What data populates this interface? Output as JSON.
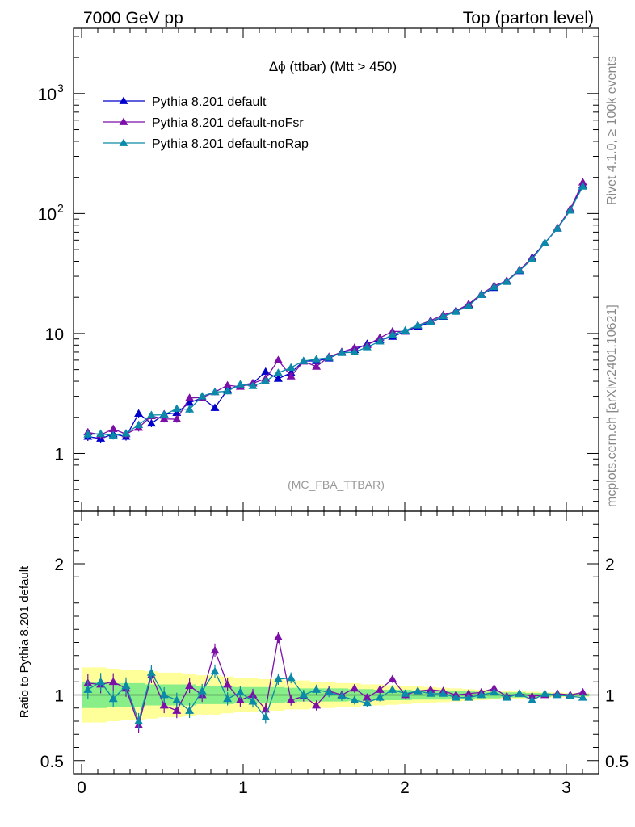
{
  "header": {
    "left": "7000 GeV pp",
    "right": "Top (parton level)"
  },
  "side_labels": {
    "rivet": "Rivet 4.1.0, ≥ 100k events",
    "mcplots": "mcplots.cern.ch [arXiv:2401.10621]"
  },
  "chart_data": [
    {
      "type": "line",
      "panel": "main",
      "title": "Δϕ (ttbar) (Mtt > 450)",
      "watermark": "(MC_FBA_TTBAR)",
      "xlabel": "",
      "ylabel": "",
      "yscale": "log",
      "xlim": [
        -0.05,
        3.2
      ],
      "ylim": [
        0.33,
        3500
      ],
      "x_ticks": [
        0,
        1,
        2,
        3
      ],
      "y_tick_labels": [
        "1",
        "10",
        "10",
        "10"
      ],
      "y_tick_exponents": [
        "",
        "",
        "2",
        "3"
      ],
      "legend_position": "top-left",
      "x": [
        0.039,
        0.118,
        0.196,
        0.275,
        0.353,
        0.432,
        0.511,
        0.589,
        0.668,
        0.746,
        0.825,
        0.903,
        0.982,
        1.06,
        1.139,
        1.217,
        1.296,
        1.374,
        1.453,
        1.531,
        1.61,
        1.689,
        1.767,
        1.846,
        1.924,
        2.003,
        2.081,
        2.16,
        2.238,
        2.317,
        2.395,
        2.474,
        2.553,
        2.631,
        2.71,
        2.788,
        2.867,
        2.945,
        3.024,
        3.102
      ],
      "series": [
        {
          "name": "Pythia 8.201 default",
          "color": "#0000cc",
          "values": [
            1.38,
            1.33,
            1.45,
            1.38,
            2.15,
            1.78,
            2.12,
            2.18,
            2.65,
            2.9,
            2.4,
            3.4,
            3.7,
            3.85,
            4.8,
            4.2,
            4.7,
            5.9,
            5.9,
            6.2,
            7.0,
            7.3,
            8.2,
            8.8,
            9.4,
            10.4,
            11.4,
            12.4,
            13.8,
            15.5,
            17.4,
            21.0,
            24.0,
            27.5,
            33.2,
            43.0,
            57.0,
            75.0,
            107.0,
            172.0
          ]
        },
        {
          "name": "Pythia 8.201 default-noFsr",
          "color": "#7b0fa8",
          "values": [
            1.5,
            1.43,
            1.6,
            1.45,
            1.64,
            2.05,
            1.94,
            1.93,
            2.9,
            2.92,
            3.25,
            3.7,
            3.6,
            3.85,
            4.2,
            6.0,
            4.4,
            5.85,
            5.3,
            6.4,
            7.0,
            7.6,
            8.0,
            9.2,
            10.4,
            10.4,
            11.7,
            12.8,
            14.3,
            15.4,
            17.6,
            21.3,
            25.0,
            27.4,
            34.0,
            42.5,
            56.5,
            76.0,
            109.0,
            182.0
          ]
        },
        {
          "name": "Pythia 8.201 default-noRap",
          "color": "#0a8aa8",
          "values": [
            1.44,
            1.46,
            1.41,
            1.47,
            1.73,
            2.09,
            2.1,
            2.36,
            2.33,
            3.0,
            3.25,
            3.3,
            3.77,
            3.65,
            4.0,
            4.7,
            5.2,
            5.9,
            6.1,
            6.3,
            6.9,
            7.0,
            7.7,
            8.6,
            9.8,
            10.6,
            11.7,
            12.5,
            13.9,
            15.2,
            17.0,
            21.0,
            24.4,
            27.0,
            33.5,
            41.5,
            57.0,
            75.0,
            106.0,
            168.0
          ]
        }
      ]
    },
    {
      "type": "line",
      "panel": "ratio",
      "ylabel": "Ratio to Pythia 8.201 default",
      "xlim": [
        -0.05,
        3.2
      ],
      "ylim": [
        0.4,
        2.4
      ],
      "x_ticks": [
        0,
        1,
        2,
        3
      ],
      "y_tick_labels": [
        "0.5",
        "1",
        "2"
      ],
      "band_green_halfwidth": [
        0.1,
        0.1,
        0.09,
        0.09,
        0.09,
        0.08,
        0.08,
        0.08,
        0.08,
        0.07,
        0.07,
        0.07,
        0.06,
        0.06,
        0.06,
        0.06,
        0.055,
        0.05,
        0.05,
        0.05,
        0.05,
        0.045,
        0.045,
        0.04,
        0.04,
        0.04,
        0.035,
        0.035,
        0.035,
        0.03,
        0.03,
        0.025,
        0.025,
        0.02,
        0.02,
        0.015,
        0.015,
        0.01,
        0.01,
        0.01
      ],
      "band_yellow_halfwidth": [
        0.21,
        0.21,
        0.2,
        0.19,
        0.19,
        0.18,
        0.17,
        0.17,
        0.16,
        0.15,
        0.15,
        0.14,
        0.13,
        0.13,
        0.12,
        0.12,
        0.11,
        0.11,
        0.1,
        0.1,
        0.09,
        0.09,
        0.08,
        0.08,
        0.075,
        0.07,
        0.065,
        0.06,
        0.055,
        0.05,
        0.045,
        0.04,
        0.035,
        0.03,
        0.03,
        0.025,
        0.02,
        0.02,
        0.015,
        0.015
      ],
      "series": [
        {
          "name": "Pythia 8.201 default",
          "color": "#0000cc",
          "values": [
            1,
            1,
            1,
            1,
            1,
            1,
            1,
            1,
            1,
            1,
            1,
            1,
            1,
            1,
            1,
            1,
            1,
            1,
            1,
            1,
            1,
            1,
            1,
            1,
            1,
            1,
            1,
            1,
            1,
            1,
            1,
            1,
            1,
            1,
            1,
            1,
            1,
            1,
            1,
            1
          ]
        },
        {
          "name": "Pythia 8.201 default-noFsr",
          "color": "#7b0fa8",
          "values": [
            1.09,
            1.08,
            1.1,
            1.05,
            0.77,
            1.15,
            0.92,
            0.88,
            1.07,
            1.0,
            1.34,
            1.08,
            0.96,
            1.0,
            0.89,
            1.44,
            0.96,
            0.99,
            0.92,
            1.03,
            1.0,
            1.05,
            0.98,
            1.04,
            1.12,
            1.0,
            1.03,
            1.04,
            1.03,
            1.0,
            1.01,
            1.02,
            1.05,
            0.99,
            1.01,
            0.99,
            1.0,
            1.01,
            1.0,
            1.02
          ]
        },
        {
          "name": "Pythia 8.201 default-noRap",
          "color": "#0a8aa8",
          "values": [
            1.04,
            1.1,
            0.97,
            1.07,
            0.8,
            1.17,
            1.0,
            0.96,
            0.88,
            1.03,
            1.18,
            0.97,
            1.02,
            0.95,
            0.83,
            1.12,
            1.13,
            1.0,
            1.04,
            1.02,
            0.99,
            0.96,
            0.94,
            0.98,
            1.04,
            1.01,
            1.03,
            1.01,
            1.01,
            0.98,
            0.98,
            1.0,
            1.02,
            0.98,
            1.01,
            0.96,
            1.01,
            1.0,
            0.99,
            0.98
          ]
        }
      ]
    }
  ]
}
